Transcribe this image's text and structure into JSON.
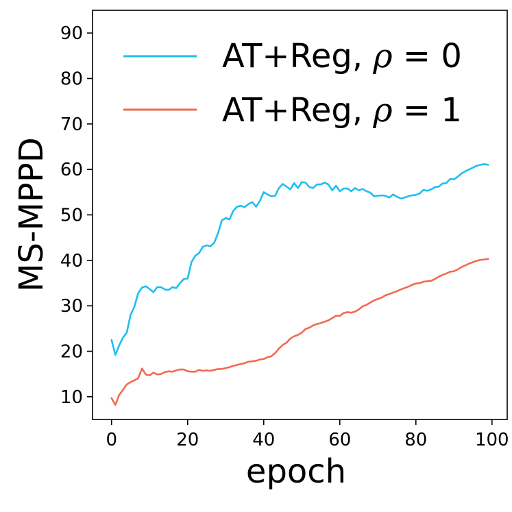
{
  "chart_data": {
    "type": "line",
    "xlabel": "epoch",
    "ylabel": "MS-MPPD",
    "xlim": [
      -5,
      104
    ],
    "ylim": [
      5,
      95
    ],
    "xticks": [
      0,
      20,
      40,
      60,
      80,
      100
    ],
    "yticks": [
      10,
      20,
      30,
      40,
      50,
      60,
      70,
      80,
      90
    ],
    "legend_position": "top-right",
    "x": [
      0,
      1,
      2,
      3,
      4,
      5,
      6,
      7,
      8,
      9,
      10,
      11,
      12,
      13,
      14,
      15,
      16,
      17,
      18,
      19,
      20,
      21,
      22,
      23,
      24,
      25,
      26,
      27,
      28,
      29,
      30,
      31,
      32,
      33,
      34,
      35,
      36,
      37,
      38,
      39,
      40,
      41,
      42,
      43,
      44,
      45,
      46,
      47,
      48,
      49,
      50,
      51,
      52,
      53,
      54,
      55,
      56,
      57,
      58,
      59,
      60,
      61,
      62,
      63,
      64,
      65,
      66,
      67,
      68,
      69,
      70,
      71,
      72,
      73,
      74,
      75,
      76,
      77,
      78,
      79,
      80,
      81,
      82,
      83,
      84,
      85,
      86,
      87,
      88,
      89,
      90,
      91,
      92,
      93,
      94,
      95,
      96,
      97,
      98,
      99
    ],
    "series": [
      {
        "name_prefix": "AT+Reg, ",
        "rho_symbol": "ρ",
        "name_suffix": " = 0",
        "color": "#1ebfef",
        "values": [
          22.5,
          19.2,
          21.3,
          23.0,
          24.1,
          28.0,
          29.8,
          32.8,
          34.0,
          34.3,
          33.7,
          33.0,
          34.1,
          34.1,
          33.6,
          33.5,
          34.1,
          33.9,
          35.0,
          35.9,
          36.0,
          39.6,
          41.0,
          41.6,
          43.0,
          43.3,
          43.1,
          43.9,
          46.0,
          48.8,
          49.3,
          49.0,
          50.9,
          51.8,
          52.0,
          51.7,
          52.4,
          52.8,
          51.8,
          53.1,
          55.0,
          54.5,
          54.1,
          54.2,
          55.9,
          56.8,
          56.2,
          55.6,
          57.0,
          55.9,
          57.2,
          57.1,
          56.1,
          55.9,
          56.7,
          56.7,
          57.1,
          56.7,
          55.4,
          56.4,
          55.2,
          55.8,
          55.8,
          55.2,
          55.9,
          55.4,
          55.7,
          55.2,
          54.9,
          54.1,
          54.2,
          54.3,
          54.2,
          53.8,
          54.5,
          54.0,
          53.6,
          53.8,
          54.1,
          54.3,
          54.4,
          54.7,
          55.5,
          55.3,
          55.6,
          56.1,
          56.2,
          56.9,
          57.0,
          57.9,
          57.8,
          58.4,
          59.1,
          59.6,
          60.0,
          60.4,
          60.8,
          61.0,
          61.2,
          61.0
        ]
      },
      {
        "name_prefix": "AT+Reg, ",
        "rho_symbol": "ρ",
        "name_suffix": " = 1",
        "color": "#f26a4f",
        "values": [
          9.7,
          8.2,
          10.4,
          11.5,
          12.7,
          13.2,
          13.6,
          14.1,
          16.2,
          14.9,
          14.7,
          15.3,
          14.9,
          15.0,
          15.4,
          15.6,
          15.5,
          15.8,
          16.0,
          16.0,
          15.6,
          15.5,
          15.5,
          15.9,
          15.7,
          15.8,
          15.7,
          15.9,
          16.1,
          16.1,
          16.3,
          16.5,
          16.8,
          17.0,
          17.2,
          17.4,
          17.7,
          17.8,
          17.9,
          18.2,
          18.3,
          18.7,
          18.9,
          19.6,
          20.6,
          21.4,
          21.9,
          22.8,
          23.3,
          23.6,
          24.1,
          24.9,
          25.2,
          25.7,
          26.0,
          26.2,
          26.5,
          26.8,
          27.3,
          27.8,
          27.8,
          28.4,
          28.6,
          28.5,
          28.7,
          29.2,
          29.9,
          30.2,
          30.7,
          31.2,
          31.5,
          31.8,
          32.3,
          32.6,
          32.9,
          33.2,
          33.6,
          33.9,
          34.2,
          34.6,
          34.9,
          35.0,
          35.3,
          35.4,
          35.5,
          35.9,
          36.4,
          36.8,
          37.1,
          37.5,
          37.6,
          38.0,
          38.5,
          38.9,
          39.3,
          39.6,
          39.9,
          40.1,
          40.2,
          40.3
        ]
      }
    ]
  }
}
